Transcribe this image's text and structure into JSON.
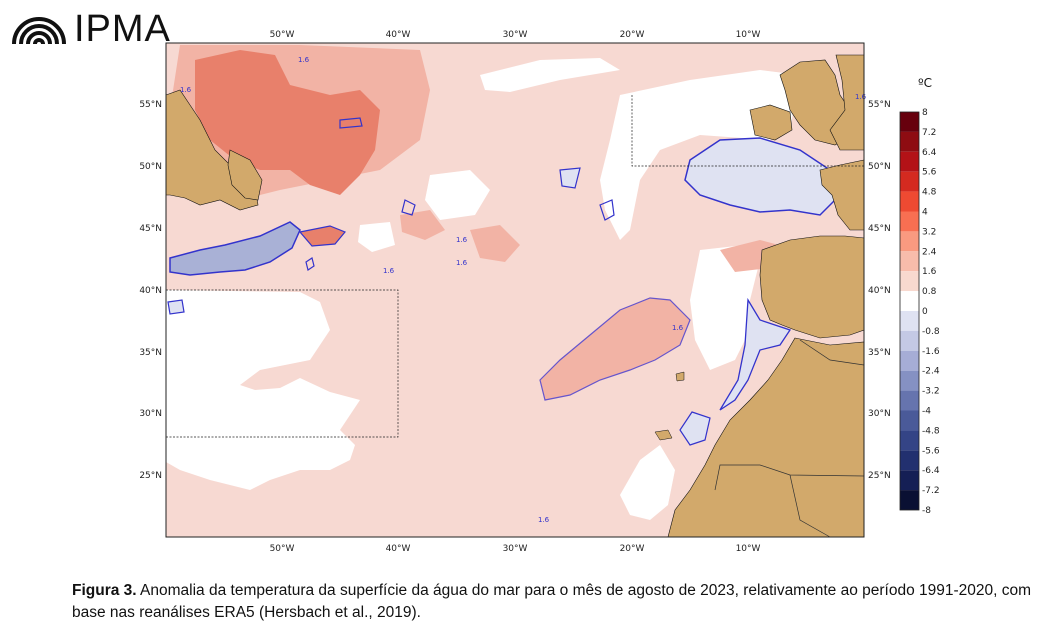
{
  "header": {
    "logo_text": "IPMA",
    "logo_icon": "ipma-arcs-icon"
  },
  "map": {
    "lon_labels": [
      "50°W",
      "40°W",
      "30°W",
      "20°W",
      "10°W"
    ],
    "lat_labels": [
      "55°N",
      "50°N",
      "45°N",
      "40°N",
      "35°N",
      "30°N",
      "25°N"
    ],
    "contour_labels": [
      "1.6",
      "1.6",
      "1.6",
      "1.6",
      "1.6",
      "1.6",
      "1.6",
      "1.6"
    ],
    "colors": {
      "ocean_light": "#f7d9d2",
      "ocean_medium": "#f2b3a5",
      "ocean_strong": "#e8806b",
      "neutral": "#ffffff",
      "cool_light": "#dfe2f2",
      "cool_medium": "#a9b1d6",
      "land": "#d2a96b",
      "contour_blue": "#3333cc"
    }
  },
  "colorbar": {
    "unit": "ºC",
    "labels": [
      "8",
      "7.2",
      "6.4",
      "5.6",
      "4.8",
      "4",
      "3.2",
      "2.4",
      "1.6",
      "0.8",
      "0",
      "-0.8",
      "-1.6",
      "-2.4",
      "-3.2",
      "-4",
      "-4.8",
      "-5.6",
      "-6.4",
      "-7.2",
      "-8"
    ],
    "colors": [
      "#67000d",
      "#8e0c12",
      "#b31217",
      "#d42a20",
      "#ee4a32",
      "#f86f52",
      "#f99a80",
      "#f8bcab",
      "#f8d9cf",
      "#ffffff",
      "#ffffff",
      "#dfe2f2",
      "#c4c9e5",
      "#a6add6",
      "#8591c3",
      "#6674ae",
      "#4a5a99",
      "#344486",
      "#22306f",
      "#151f55",
      "#0a1033"
    ]
  },
  "caption": {
    "label": "Figura 3.",
    "text": " Anomalia da temperatura da superfície da água do mar para o mês de agosto de 2023, relativamente ao período 1991-2020, com base nas reanálises ERA5 (Hersbach et al., 2019)."
  }
}
